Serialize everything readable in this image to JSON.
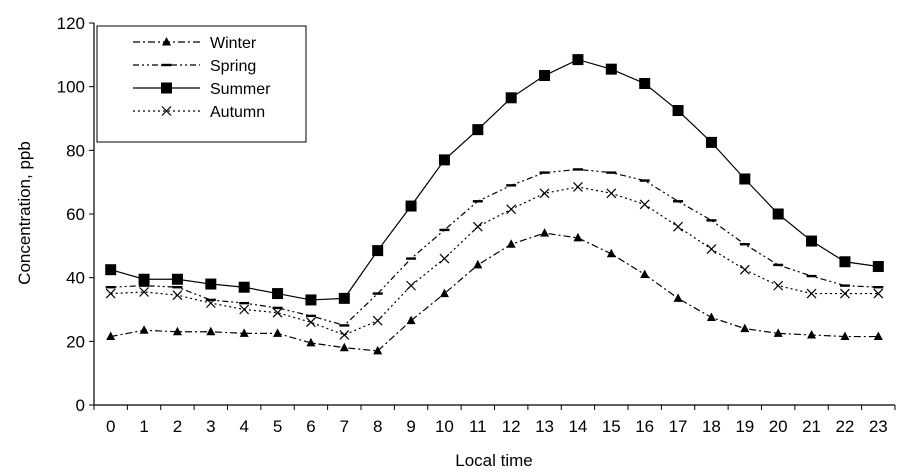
{
  "chart_data": {
    "type": "line",
    "xlabel": "Local time",
    "ylabel": "Concentration, ppb",
    "ylim": [
      0,
      120
    ],
    "yticks": [
      0,
      20,
      40,
      60,
      80,
      100,
      120
    ],
    "x": [
      0,
      1,
      2,
      3,
      4,
      5,
      6,
      7,
      8,
      9,
      10,
      11,
      12,
      13,
      14,
      15,
      16,
      17,
      18,
      19,
      20,
      21,
      22,
      23
    ],
    "grid": false,
    "legend_position": "top-left",
    "series": [
      {
        "name": "Winter",
        "marker": "triangle",
        "line_style": "dash-dot",
        "color": "#000000",
        "values": [
          21.5,
          23.5,
          23,
          23,
          22.5,
          22.5,
          19.5,
          18,
          17,
          26.5,
          35,
          44,
          50.5,
          54,
          52.5,
          47.5,
          41,
          33.5,
          27.5,
          24,
          22.5,
          22,
          21.5,
          21.5
        ]
      },
      {
        "name": "Spring",
        "marker": "dash",
        "line_style": "dash-dot-dot",
        "color": "#000000",
        "values": [
          37,
          37.5,
          37,
          33,
          32,
          30.5,
          28,
          25,
          35,
          46,
          55,
          64,
          69,
          73,
          74,
          73,
          70.5,
          64,
          58,
          50.5,
          44,
          40.5,
          37.5,
          37
        ]
      },
      {
        "name": "Summer",
        "marker": "square",
        "line_style": "solid",
        "color": "#000000",
        "values": [
          42.5,
          39.5,
          39.5,
          38,
          37,
          35,
          33,
          33.5,
          48.5,
          62.5,
          77,
          86.5,
          96.5,
          103.5,
          108.5,
          105.5,
          101,
          92.5,
          82.5,
          71,
          60,
          51.5,
          45,
          43.5
        ]
      },
      {
        "name": "Autumn",
        "marker": "x",
        "line_style": "dotted",
        "color": "#000000",
        "values": [
          35,
          35.5,
          34.5,
          32,
          30,
          29,
          26,
          22,
          26.5,
          37.5,
          46,
          56,
          61.5,
          66.5,
          68.5,
          66.5,
          63,
          56,
          49,
          42.5,
          37.5,
          35,
          35,
          35
        ]
      }
    ]
  }
}
